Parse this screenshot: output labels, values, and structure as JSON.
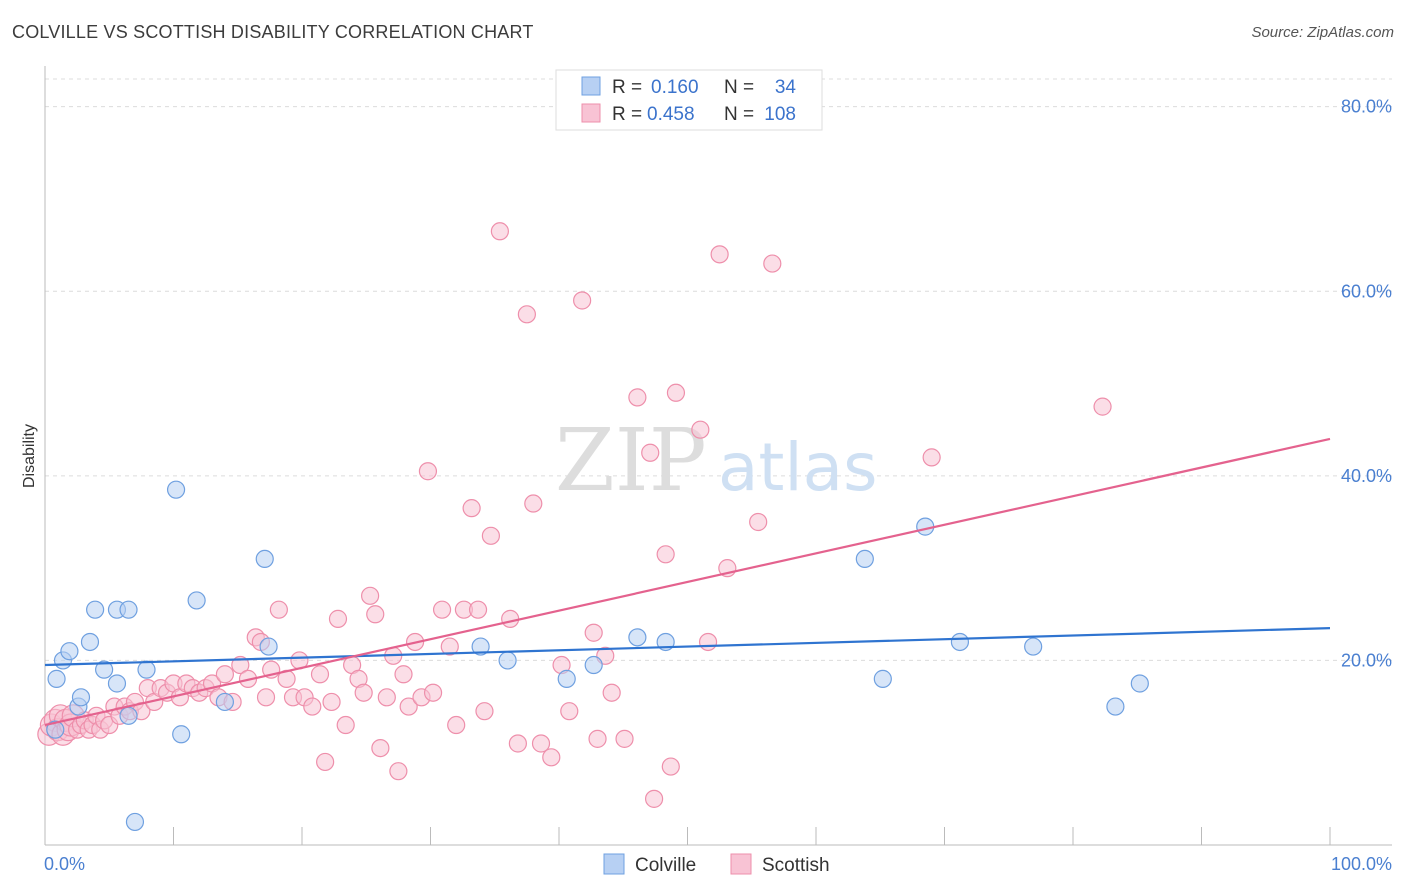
{
  "chart_data": {
    "type": "scatter",
    "title": "COLVILLE VS SCOTTISH DISABILITY CORRELATION CHART",
    "source": "Source: ZipAtlas.com",
    "ylabel": "Disability",
    "xlabel": "",
    "xlim": [
      0,
      100
    ],
    "ylim": [
      0,
      83
    ],
    "x_ticks_labels": [
      "0.0%",
      "100.0%"
    ],
    "y_ticks": [
      20,
      40,
      60,
      80
    ],
    "y_ticks_labels": [
      "20.0%",
      "40.0%",
      "60.0%",
      "80.0%"
    ],
    "grid": true,
    "legend_position": "top-center",
    "watermark": "ZIPatlas",
    "series": [
      {
        "name": "Colville",
        "color": "#6fa0e0",
        "fill": "#b7d0f3",
        "line_color": "#2f74d0",
        "R": "0.160",
        "N": "34",
        "trend": [
          [
            0,
            19.5
          ],
          [
            100,
            23.5
          ]
        ],
        "points": [
          [
            0.8,
            12.5
          ],
          [
            0.9,
            18.0
          ],
          [
            1.4,
            20.0
          ],
          [
            1.9,
            21.0
          ],
          [
            2.6,
            15.0
          ],
          [
            2.8,
            16.0
          ],
          [
            3.5,
            22.0
          ],
          [
            3.9,
            25.5
          ],
          [
            4.6,
            19.0
          ],
          [
            5.6,
            25.5
          ],
          [
            5.6,
            17.5
          ],
          [
            6.5,
            14.0
          ],
          [
            6.5,
            25.5
          ],
          [
            7.0,
            2.5
          ],
          [
            7.9,
            19.0
          ],
          [
            10.2,
            38.5
          ],
          [
            10.6,
            12.0
          ],
          [
            11.8,
            26.5
          ],
          [
            14.0,
            15.5
          ],
          [
            17.1,
            31.0
          ],
          [
            17.4,
            21.5
          ],
          [
            33.9,
            21.5
          ],
          [
            36.0,
            20.0
          ],
          [
            40.6,
            18.0
          ],
          [
            42.7,
            19.5
          ],
          [
            46.1,
            22.5
          ],
          [
            48.3,
            22.0
          ],
          [
            63.8,
            31.0
          ],
          [
            65.2,
            18.0
          ],
          [
            68.5,
            34.5
          ],
          [
            71.2,
            22.0
          ],
          [
            76.9,
            21.5
          ],
          [
            83.3,
            15.0
          ],
          [
            85.2,
            17.5
          ]
        ]
      },
      {
        "name": "Scottish",
        "color": "#ee8fab",
        "fill": "#f8c3d4",
        "line_color": "#e4628e",
        "R": "0.458",
        "N": "108",
        "trend": [
          [
            0,
            13.0
          ],
          [
            100,
            44.0
          ]
        ],
        "points": [
          [
            0.3,
            12.0
          ],
          [
            0.5,
            13.0
          ],
          [
            0.8,
            13.5
          ],
          [
            1.0,
            12.5
          ],
          [
            1.2,
            14.0
          ],
          [
            1.4,
            12.0
          ],
          [
            1.6,
            13.5
          ],
          [
            1.8,
            12.5
          ],
          [
            2.0,
            13.0
          ],
          [
            2.2,
            14.0
          ],
          [
            2.5,
            12.5
          ],
          [
            2.8,
            13.0
          ],
          [
            3.1,
            13.5
          ],
          [
            3.4,
            12.5
          ],
          [
            3.7,
            13.0
          ],
          [
            4.0,
            14.0
          ],
          [
            4.3,
            12.5
          ],
          [
            4.6,
            13.5
          ],
          [
            5.0,
            13.0
          ],
          [
            5.4,
            15.0
          ],
          [
            5.8,
            14.0
          ],
          [
            6.2,
            15.0
          ],
          [
            6.6,
            14.5
          ],
          [
            7.0,
            15.5
          ],
          [
            7.5,
            14.5
          ],
          [
            8.0,
            17.0
          ],
          [
            8.5,
            15.5
          ],
          [
            9.0,
            17.0
          ],
          [
            9.5,
            16.5
          ],
          [
            10.0,
            17.5
          ],
          [
            10.5,
            16.0
          ],
          [
            11.0,
            17.5
          ],
          [
            11.5,
            17.0
          ],
          [
            12.0,
            16.5
          ],
          [
            12.5,
            17.0
          ],
          [
            13.0,
            17.5
          ],
          [
            13.5,
            16.0
          ],
          [
            14.0,
            18.5
          ],
          [
            14.6,
            15.5
          ],
          [
            15.2,
            19.5
          ],
          [
            15.8,
            18.0
          ],
          [
            16.4,
            22.5
          ],
          [
            16.8,
            22.0
          ],
          [
            17.2,
            16.0
          ],
          [
            17.6,
            19.0
          ],
          [
            18.2,
            25.5
          ],
          [
            18.8,
            18.0
          ],
          [
            19.3,
            16.0
          ],
          [
            19.8,
            20.0
          ],
          [
            20.2,
            16.0
          ],
          [
            20.8,
            15.0
          ],
          [
            21.4,
            18.5
          ],
          [
            21.8,
            9.0
          ],
          [
            22.3,
            15.5
          ],
          [
            22.8,
            24.5
          ],
          [
            23.4,
            13.0
          ],
          [
            23.9,
            19.5
          ],
          [
            24.4,
            18.0
          ],
          [
            24.8,
            16.5
          ],
          [
            25.3,
            27.0
          ],
          [
            25.7,
            25.0
          ],
          [
            26.1,
            10.5
          ],
          [
            26.6,
            16.0
          ],
          [
            27.1,
            20.5
          ],
          [
            27.5,
            8.0
          ],
          [
            27.9,
            18.5
          ],
          [
            28.3,
            15.0
          ],
          [
            28.8,
            22.0
          ],
          [
            29.3,
            16.0
          ],
          [
            29.8,
            40.5
          ],
          [
            30.2,
            16.5
          ],
          [
            30.9,
            25.5
          ],
          [
            31.5,
            21.5
          ],
          [
            32.0,
            13.0
          ],
          [
            32.6,
            25.5
          ],
          [
            33.2,
            36.5
          ],
          [
            33.7,
            25.5
          ],
          [
            34.2,
            14.5
          ],
          [
            34.7,
            33.5
          ],
          [
            35.4,
            66.5
          ],
          [
            36.2,
            24.5
          ],
          [
            36.8,
            11.0
          ],
          [
            37.5,
            57.5
          ],
          [
            38.0,
            37.0
          ],
          [
            38.6,
            11.0
          ],
          [
            39.4,
            9.5
          ],
          [
            40.2,
            19.5
          ],
          [
            40.8,
            14.5
          ],
          [
            41.8,
            59.0
          ],
          [
            42.7,
            23.0
          ],
          [
            43.0,
            11.5
          ],
          [
            43.6,
            20.5
          ],
          [
            44.1,
            16.5
          ],
          [
            45.1,
            11.5
          ],
          [
            46.1,
            48.5
          ],
          [
            47.1,
            42.5
          ],
          [
            47.4,
            5.0
          ],
          [
            48.3,
            31.5
          ],
          [
            48.7,
            8.5
          ],
          [
            49.1,
            49.0
          ],
          [
            51.0,
            45.0
          ],
          [
            51.6,
            22.0
          ],
          [
            52.5,
            64.0
          ],
          [
            53.1,
            30.0
          ],
          [
            55.5,
            35.0
          ],
          [
            56.6,
            63.0
          ],
          [
            69.0,
            42.0
          ],
          [
            82.3,
            47.5
          ]
        ]
      }
    ]
  }
}
